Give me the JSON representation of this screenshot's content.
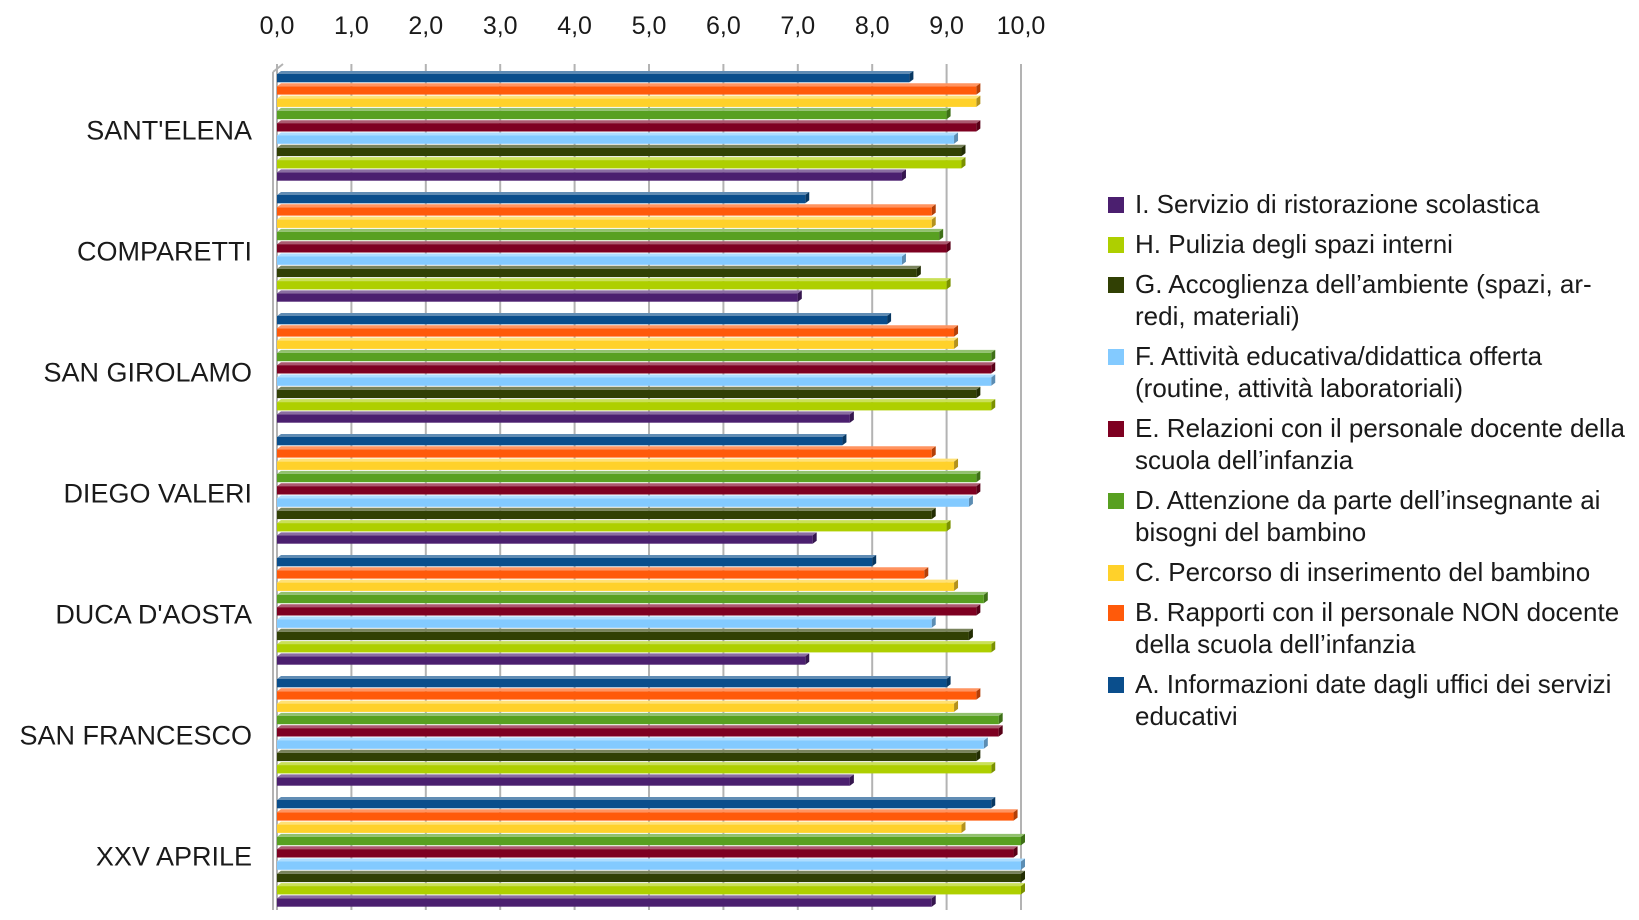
{
  "chart_data": {
    "type": "bar",
    "orientation": "horizontal",
    "x_axis_position": "top",
    "xlim": [
      0,
      10
    ],
    "x_ticks": [
      "0,0",
      "1,0",
      "2,0",
      "3,0",
      "4,0",
      "5,0",
      "6,0",
      "7,0",
      "8,0",
      "9,0",
      "10,0"
    ],
    "grid": true,
    "legend_position": "right",
    "categories": [
      "SANT'ELENA",
      "COMPARETTI",
      "SAN GIROLAMO",
      "DIEGO VALERI",
      "DUCA D'AOSTA",
      "SAN FRANCESCO",
      "XXV APRILE"
    ],
    "series": [
      {
        "name": "A. Informazioni date dagli uffici dei servizi educativi",
        "color": "#0a4e8c",
        "values": [
          8.5,
          7.1,
          8.2,
          7.6,
          8.0,
          9.0,
          9.6
        ]
      },
      {
        "name": "B. Rapporti con il personale NON docente della scuola dell’infanzia",
        "color": "#ff5a0a",
        "values": [
          9.4,
          8.8,
          9.1,
          8.8,
          8.7,
          9.4,
          9.9
        ]
      },
      {
        "name": "C. Percorso di inserimento del bambino",
        "color": "#ffd12a",
        "values": [
          9.4,
          8.8,
          9.1,
          9.1,
          9.1,
          9.1,
          9.2
        ]
      },
      {
        "name": "D. Attenzione da parte dell’insegnante ai bisogni del bambino",
        "color": "#58a021",
        "values": [
          9.0,
          8.9,
          9.6,
          9.4,
          9.5,
          9.7,
          10.0
        ]
      },
      {
        "name": "E. Relazioni con il personale docente della scuola dell’infanzia",
        "color": "#7e0021",
        "values": [
          9.4,
          9.0,
          9.6,
          9.4,
          9.4,
          9.7,
          9.9
        ]
      },
      {
        "name": "F. Attività educativa/didattica offerta (routine, attività laboratoriali)",
        "color": "#83caff",
        "values": [
          9.1,
          8.4,
          9.6,
          9.3,
          8.8,
          9.5,
          10.0
        ]
      },
      {
        "name": "G. Accoglienza dell’ambiente (spazi, ar-redi, materiali)",
        "color": "#314004",
        "values": [
          9.2,
          8.6,
          9.4,
          8.8,
          9.3,
          9.4,
          10.0
        ]
      },
      {
        "name": "H. Pulizia degli spazi interni",
        "color": "#aecf00",
        "values": [
          9.2,
          9.0,
          9.6,
          9.0,
          9.6,
          9.6,
          10.0
        ]
      },
      {
        "name": "I. Servizio di ristorazione scolastica",
        "color": "#4b1f6f",
        "values": [
          8.4,
          7.0,
          7.7,
          7.2,
          7.1,
          7.7,
          8.8
        ]
      }
    ]
  }
}
